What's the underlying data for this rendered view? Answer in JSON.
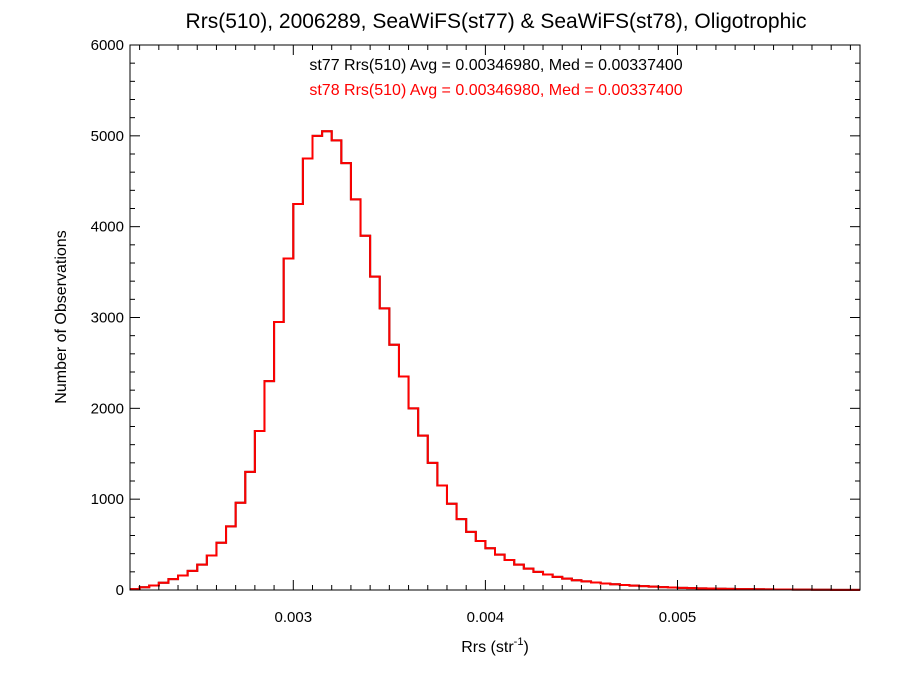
{
  "chart_data": {
    "type": "step-histogram",
    "title": "Rrs(510), 2006289, SeaWiFS(st77) & SeaWiFS(st78), Oligotrophic",
    "xlabel": {
      "main": "Rrs (str",
      "superscript": "-1",
      "close": ")"
    },
    "ylabel": "Number of Observations",
    "xlim": [
      0.00215,
      0.00595
    ],
    "ylim": [
      0,
      6000
    ],
    "x_ticks": [
      0.003,
      0.004,
      0.005
    ],
    "x_tick_labels": [
      "0.003",
      "0.004",
      "0.005"
    ],
    "y_ticks": [
      0,
      1000,
      2000,
      3000,
      4000,
      5000,
      6000
    ],
    "y_tick_labels": [
      "0",
      "1000",
      "2000",
      "3000",
      "4000",
      "5000",
      "6000"
    ],
    "annotations": [
      {
        "text": "st77 Rrs(510) Avg = 0.00346980, Med = 0.00337400",
        "color": "#000000"
      },
      {
        "text": "st78 Rrs(510) Avg = 0.00346980, Med = 0.00337400",
        "color": "#ff0000"
      }
    ],
    "grid": false,
    "series": [
      {
        "name": "st77",
        "color": "#000000",
        "x": [
          0.00215,
          0.0022,
          0.00225,
          0.0023,
          0.00235,
          0.0024,
          0.00245,
          0.0025,
          0.00255,
          0.0026,
          0.00265,
          0.0027,
          0.00275,
          0.0028,
          0.00285,
          0.0029,
          0.00295,
          0.003,
          0.00305,
          0.0031,
          0.00315,
          0.0032,
          0.00325,
          0.0033,
          0.00335,
          0.0034,
          0.00345,
          0.0035,
          0.00355,
          0.0036,
          0.00365,
          0.0037,
          0.00375,
          0.0038,
          0.00385,
          0.0039,
          0.00395,
          0.004,
          0.00405,
          0.0041,
          0.00415,
          0.0042,
          0.00425,
          0.0043,
          0.00435,
          0.0044,
          0.00445,
          0.0045,
          0.00455,
          0.0046,
          0.00465,
          0.0047,
          0.00475,
          0.0048,
          0.00485,
          0.0049,
          0.00495,
          0.005,
          0.00505,
          0.0051,
          0.00515,
          0.0052,
          0.00525,
          0.0053,
          0.00535,
          0.0054,
          0.00545,
          0.0055,
          0.00555,
          0.0056,
          0.00565,
          0.0057,
          0.00575,
          0.0058,
          0.00585,
          0.0059
        ],
        "y": [
          10,
          30,
          50,
          80,
          120,
          160,
          210,
          280,
          380,
          520,
          700,
          960,
          1300,
          1750,
          2300,
          2950,
          3650,
          4250,
          4750,
          5000,
          5050,
          4950,
          4700,
          4300,
          3900,
          3450,
          3100,
          2700,
          2350,
          2000,
          1700,
          1400,
          1150,
          950,
          780,
          640,
          540,
          460,
          390,
          330,
          280,
          235,
          200,
          170,
          145,
          125,
          108,
          95,
          83,
          72,
          63,
          55,
          48,
          42,
          37,
          32,
          28,
          24,
          21,
          18,
          16,
          14,
          12,
          10,
          9,
          8,
          7,
          6,
          5,
          4,
          4,
          3,
          3,
          2,
          2,
          2
        ]
      },
      {
        "name": "st78",
        "color": "#ff0000",
        "x": [
          0.00215,
          0.0022,
          0.00225,
          0.0023,
          0.00235,
          0.0024,
          0.00245,
          0.0025,
          0.00255,
          0.0026,
          0.00265,
          0.0027,
          0.00275,
          0.0028,
          0.00285,
          0.0029,
          0.00295,
          0.003,
          0.00305,
          0.0031,
          0.00315,
          0.0032,
          0.00325,
          0.0033,
          0.00335,
          0.0034,
          0.00345,
          0.0035,
          0.00355,
          0.0036,
          0.00365,
          0.0037,
          0.00375,
          0.0038,
          0.00385,
          0.0039,
          0.00395,
          0.004,
          0.00405,
          0.0041,
          0.00415,
          0.0042,
          0.00425,
          0.0043,
          0.00435,
          0.0044,
          0.00445,
          0.0045,
          0.00455,
          0.0046,
          0.00465,
          0.0047,
          0.00475,
          0.0048,
          0.00485,
          0.0049,
          0.00495,
          0.005,
          0.00505,
          0.0051,
          0.00515,
          0.0052,
          0.00525,
          0.0053,
          0.00535,
          0.0054,
          0.00545,
          0.0055,
          0.00555,
          0.0056,
          0.00565,
          0.0057,
          0.00575,
          0.0058,
          0.00585,
          0.0059
        ],
        "y": [
          10,
          30,
          50,
          80,
          120,
          160,
          210,
          280,
          380,
          520,
          700,
          960,
          1300,
          1750,
          2300,
          2950,
          3650,
          4250,
          4750,
          5000,
          5050,
          4950,
          4700,
          4300,
          3900,
          3450,
          3100,
          2700,
          2350,
          2000,
          1700,
          1400,
          1150,
          950,
          780,
          640,
          540,
          460,
          390,
          330,
          280,
          235,
          200,
          170,
          145,
          125,
          108,
          95,
          83,
          72,
          63,
          55,
          48,
          42,
          37,
          32,
          28,
          24,
          21,
          18,
          16,
          14,
          12,
          10,
          9,
          8,
          7,
          6,
          5,
          4,
          4,
          3,
          3,
          2,
          2,
          2
        ]
      }
    ]
  }
}
